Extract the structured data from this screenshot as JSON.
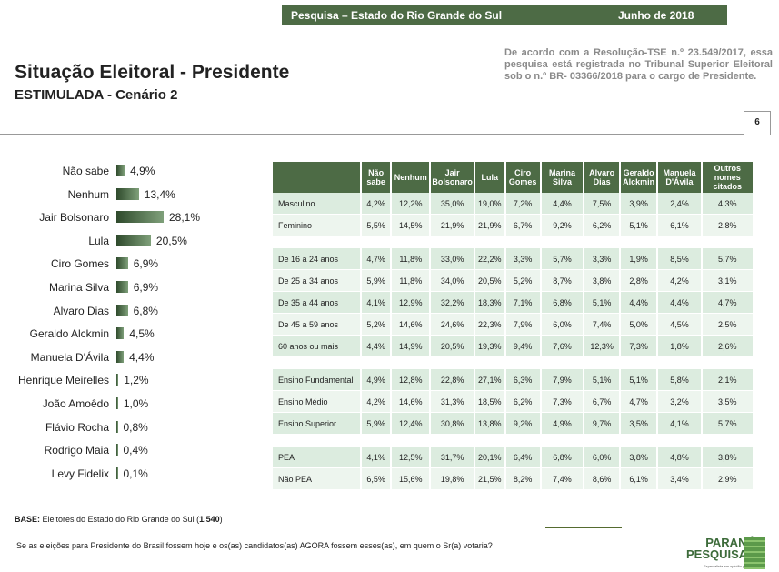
{
  "header": {
    "survey": "Pesquisa – Estado do Rio Grande do Sul",
    "date": "Junho de 2018"
  },
  "title": "Situação Eleitoral - Presidente",
  "subtitle": "ESTIMULADA - Cenário 2",
  "tse_note": "De acordo com a Resolução-TSE n.º 23.549/2017, essa pesquisa está registrada no Tribunal Superior Eleitoral sob o n.º BR- 03366/2018 para o cargo de Presidente.",
  "page_number": "6",
  "chart_data": {
    "type": "bar",
    "orientation": "horizontal",
    "categories": [
      "Não sabe",
      "Nenhum",
      "Jair Bolsonaro",
      "Lula",
      "Ciro Gomes",
      "Marina Silva",
      "Alvaro Dias",
      "Geraldo Alckmin",
      "Manuela D'Ávila",
      "Henrique Meirelles",
      "João Amoêdo",
      "Flávio Rocha",
      "Rodrigo Maia",
      "Levy Fidelix"
    ],
    "values": [
      4.9,
      13.4,
      28.1,
      20.5,
      6.9,
      6.9,
      6.8,
      4.5,
      4.4,
      1.2,
      1.0,
      0.8,
      0.4,
      0.1
    ],
    "labels": [
      "4,9%",
      "13,4%",
      "28,1%",
      "20,5%",
      "6,9%",
      "6,9%",
      "6,8%",
      "4,5%",
      "4,4%",
      "1,2%",
      "1,0%",
      "0,8%",
      "0,4%",
      "0,1%"
    ],
    "color": "#3d5c38"
  },
  "table": {
    "headers": [
      "Não sabe",
      "Nenhum",
      "Jair Bolsonaro",
      "Lula",
      "Ciro Gomes",
      "Marina Silva",
      "Alvaro Dias",
      "Geraldo Alckmin",
      "Manuela D'Ávila",
      "Outros nomes citados"
    ],
    "groups": [
      [
        [
          "Masculino",
          "4,2%",
          "12,2%",
          "35,0%",
          "19,0%",
          "7,2%",
          "4,4%",
          "7,5%",
          "3,9%",
          "2,4%",
          "4,3%"
        ],
        [
          "Feminino",
          "5,5%",
          "14,5%",
          "21,9%",
          "21,9%",
          "6,7%",
          "9,2%",
          "6,2%",
          "5,1%",
          "6,1%",
          "2,8%"
        ]
      ],
      [
        [
          "De 16 a 24 anos",
          "4,7%",
          "11,8%",
          "33,0%",
          "22,2%",
          "3,3%",
          "5,7%",
          "3,3%",
          "1,9%",
          "8,5%",
          "5,7%"
        ],
        [
          "De 25 a 34 anos",
          "5,9%",
          "11,8%",
          "34,0%",
          "20,5%",
          "5,2%",
          "8,7%",
          "3,8%",
          "2,8%",
          "4,2%",
          "3,1%"
        ],
        [
          "De 35 a 44 anos",
          "4,1%",
          "12,9%",
          "32,2%",
          "18,3%",
          "7,1%",
          "6,8%",
          "5,1%",
          "4,4%",
          "4,4%",
          "4,7%"
        ],
        [
          "De 45 a 59 anos",
          "5,2%",
          "14,6%",
          "24,6%",
          "22,3%",
          "7,9%",
          "6,0%",
          "7,4%",
          "5,0%",
          "4,5%",
          "2,5%"
        ],
        [
          "60 anos ou mais",
          "4,4%",
          "14,9%",
          "20,5%",
          "19,3%",
          "9,4%",
          "7,6%",
          "12,3%",
          "7,3%",
          "1,8%",
          "2,6%"
        ]
      ],
      [
        [
          "Ensino Fundamental",
          "4,9%",
          "12,8%",
          "22,8%",
          "27,1%",
          "6,3%",
          "7,9%",
          "5,1%",
          "5,1%",
          "5,8%",
          "2,1%"
        ],
        [
          "Ensino Médio",
          "4,2%",
          "14,6%",
          "31,3%",
          "18,5%",
          "6,2%",
          "7,3%",
          "6,7%",
          "4,7%",
          "3,2%",
          "3,5%"
        ],
        [
          "Ensino Superior",
          "5,9%",
          "12,4%",
          "30,8%",
          "13,8%",
          "9,2%",
          "4,9%",
          "9,7%",
          "3,5%",
          "4,1%",
          "5,7%"
        ]
      ],
      [
        [
          "PEA",
          "4,1%",
          "12,5%",
          "31,7%",
          "20,1%",
          "6,4%",
          "6,8%",
          "6,0%",
          "3,8%",
          "4,8%",
          "3,8%"
        ],
        [
          "Não PEA",
          "6,5%",
          "15,6%",
          "19,8%",
          "21,5%",
          "8,2%",
          "7,4%",
          "8,6%",
          "6,1%",
          "3,4%",
          "2,9%"
        ]
      ]
    ]
  },
  "base": {
    "label": "BASE:",
    "text": " Eleitores do Estado do Rio Grande do Sul (",
    "n": "1.540",
    "close": ")"
  },
  "question": "Se as eleições para Presidente do Brasil fossem hoje e os(as) candidatos(as) AGORA fossem esses(as), em quem o Sr(a) votaria?",
  "logo": {
    "line1": "PARANÁ",
    "line2": "PESQUISAS",
    "tagline": "Especialista em opinião pública."
  }
}
